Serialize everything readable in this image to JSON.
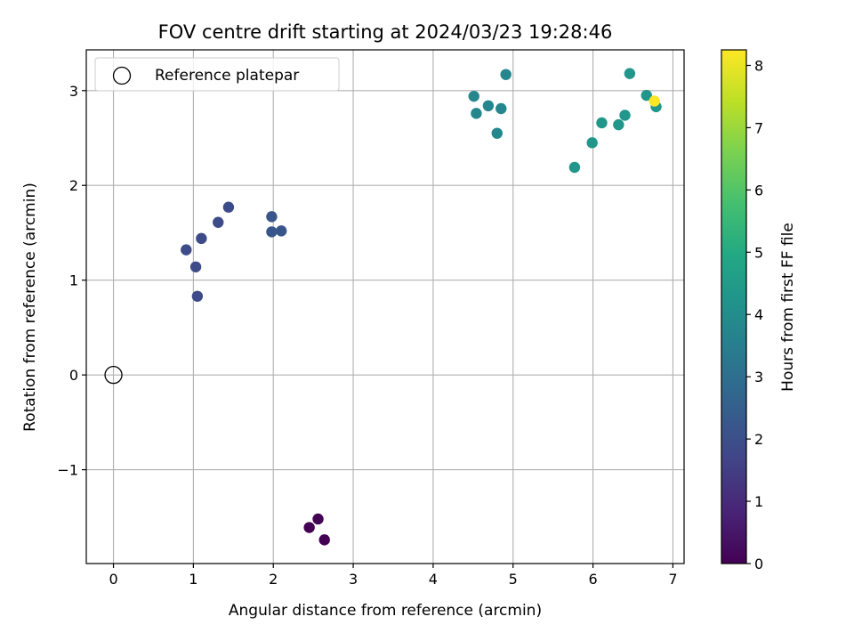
{
  "chart_data": {
    "type": "scatter",
    "title": "FOV centre drift starting at 2024/03/23 19:28:46",
    "xlabel": "Angular distance from reference (arcmin)",
    "ylabel": "Rotation from reference (arcmin)",
    "xlim": [
      -0.34,
      7.14
    ],
    "ylim": [
      -1.99,
      3.43
    ],
    "xticks": [
      0,
      1,
      2,
      3,
      4,
      5,
      6,
      7
    ],
    "xtick_labels": [
      "0",
      "1",
      "2",
      "3",
      "4",
      "5",
      "6",
      "7"
    ],
    "yticks": [
      -1,
      0,
      1,
      2,
      3
    ],
    "ytick_labels": [
      "−1",
      "0",
      "1",
      "2",
      "3"
    ],
    "grid": true,
    "legend": {
      "position": "top-left",
      "entries": [
        "Reference platepar"
      ]
    },
    "reference_point": {
      "x": 0,
      "y": 0,
      "label": "Reference platepar",
      "marker": "hollow-circle"
    },
    "colorbar": {
      "label": "Hours from first FF file",
      "colormap": "viridis",
      "range": [
        0,
        8.25
      ],
      "ticks": [
        0,
        1,
        2,
        3,
        4,
        5,
        6,
        7,
        8
      ],
      "tick_labels": [
        "0",
        "1",
        "2",
        "3",
        "4",
        "5",
        "6",
        "7",
        "8"
      ]
    },
    "points": [
      {
        "x": 2.45,
        "y": -1.61,
        "hours": 0.0
      },
      {
        "x": 2.56,
        "y": -1.52,
        "hours": 0.0
      },
      {
        "x": 2.64,
        "y": -1.74,
        "hours": 0.0
      },
      {
        "x": 1.05,
        "y": 0.83,
        "hours": 1.9
      },
      {
        "x": 1.03,
        "y": 1.14,
        "hours": 1.9
      },
      {
        "x": 0.91,
        "y": 1.32,
        "hours": 1.9
      },
      {
        "x": 1.1,
        "y": 1.44,
        "hours": 1.9
      },
      {
        "x": 1.31,
        "y": 1.61,
        "hours": 1.9
      },
      {
        "x": 1.44,
        "y": 1.77,
        "hours": 1.9
      },
      {
        "x": 1.98,
        "y": 1.67,
        "hours": 2.2
      },
      {
        "x": 1.98,
        "y": 1.51,
        "hours": 2.2
      },
      {
        "x": 2.1,
        "y": 1.52,
        "hours": 2.2
      },
      {
        "x": 4.51,
        "y": 2.94,
        "hours": 3.8
      },
      {
        "x": 4.54,
        "y": 2.76,
        "hours": 3.8
      },
      {
        "x": 4.69,
        "y": 2.84,
        "hours": 3.8
      },
      {
        "x": 4.8,
        "y": 2.55,
        "hours": 3.8
      },
      {
        "x": 4.85,
        "y": 2.81,
        "hours": 3.8
      },
      {
        "x": 4.91,
        "y": 3.17,
        "hours": 3.8
      },
      {
        "x": 5.77,
        "y": 2.19,
        "hours": 4.3
      },
      {
        "x": 5.99,
        "y": 2.45,
        "hours": 4.3
      },
      {
        "x": 6.11,
        "y": 2.66,
        "hours": 4.3
      },
      {
        "x": 6.32,
        "y": 2.64,
        "hours": 4.3
      },
      {
        "x": 6.4,
        "y": 2.74,
        "hours": 4.3
      },
      {
        "x": 6.46,
        "y": 3.18,
        "hours": 4.3
      },
      {
        "x": 6.67,
        "y": 2.95,
        "hours": 4.3
      },
      {
        "x": 6.79,
        "y": 2.83,
        "hours": 4.3
      },
      {
        "x": 6.77,
        "y": 2.89,
        "hours": 8.25
      }
    ]
  }
}
